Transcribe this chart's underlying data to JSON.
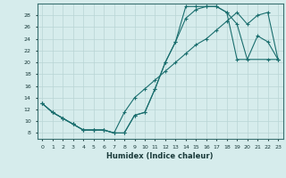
{
  "xlabel": "Humidex (Indice chaleur)",
  "ylabel": "",
  "bg_color": "#d6ecec",
  "grid_color": "#b8d4d4",
  "line_color": "#1a6e6e",
  "xlim": [
    -0.5,
    23.5
  ],
  "ylim": [
    7,
    30
  ],
  "yticks": [
    8,
    10,
    12,
    14,
    16,
    18,
    20,
    22,
    24,
    26,
    28
  ],
  "xticks": [
    0,
    1,
    2,
    3,
    4,
    5,
    6,
    7,
    8,
    9,
    10,
    11,
    12,
    13,
    14,
    15,
    16,
    17,
    18,
    19,
    20,
    21,
    22,
    23
  ],
  "curve1_x": [
    0,
    1,
    2,
    3,
    4,
    5,
    6,
    7,
    8,
    9,
    10,
    11,
    12,
    13,
    14,
    15,
    16,
    17,
    18,
    19,
    20,
    21,
    22,
    23
  ],
  "curve1_y": [
    13,
    11.5,
    10.5,
    9.5,
    8.5,
    8.5,
    8.5,
    8.0,
    8.0,
    11.0,
    11.5,
    15.5,
    20.0,
    23.5,
    27.5,
    29.0,
    29.5,
    29.5,
    28.5,
    26.5,
    20.5,
    24.5,
    23.5,
    20.5
  ],
  "curve2_x": [
    0,
    1,
    2,
    3,
    4,
    5,
    6,
    7,
    8,
    9,
    10,
    11,
    12,
    13,
    14,
    15,
    16,
    17,
    18,
    19,
    22,
    23
  ],
  "curve2_y": [
    13,
    11.5,
    10.5,
    9.5,
    8.5,
    8.5,
    8.5,
    8.0,
    8.0,
    11.0,
    11.5,
    15.5,
    20.0,
    23.5,
    29.5,
    29.5,
    29.5,
    29.5,
    28.5,
    20.5,
    20.5,
    20.5
  ],
  "curve3_x": [
    0,
    1,
    2,
    3,
    4,
    5,
    6,
    7,
    8,
    9,
    10,
    11,
    12,
    13,
    14,
    15,
    16,
    17,
    18,
    19,
    20,
    21,
    22,
    23
  ],
  "curve3_y": [
    13,
    11.5,
    10.5,
    9.5,
    8.5,
    8.5,
    8.5,
    8.0,
    11.5,
    14.0,
    15.5,
    17.0,
    18.5,
    20.0,
    21.5,
    23.0,
    24.0,
    25.5,
    27.0,
    28.5,
    26.5,
    28.0,
    28.5,
    20.5
  ]
}
